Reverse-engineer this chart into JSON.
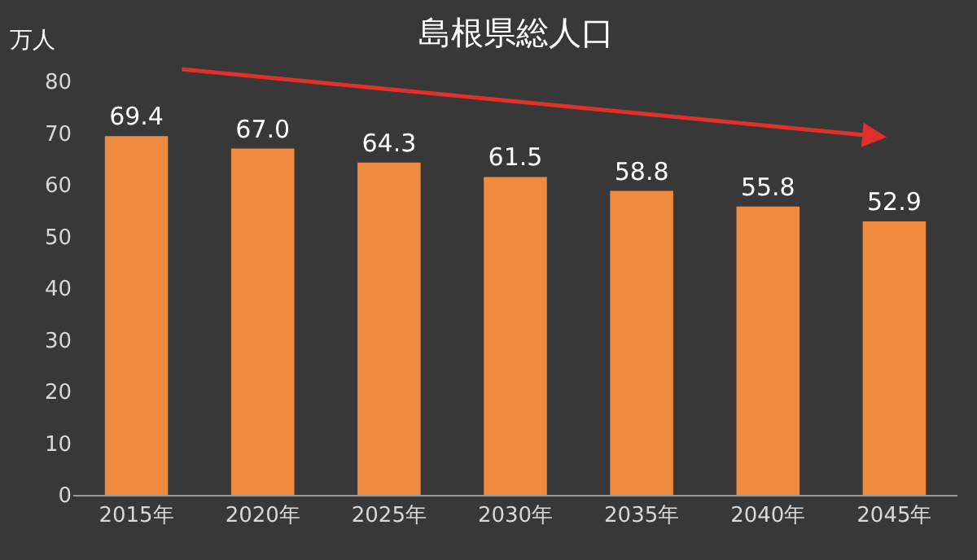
{
  "chart_data": {
    "type": "bar",
    "title": "島根県総人口",
    "ylabel": "万人",
    "categories": [
      "2015年",
      "2020年",
      "2025年",
      "2030年",
      "2035年",
      "2040年",
      "2045年"
    ],
    "values": [
      69.4,
      67.0,
      64.3,
      61.5,
      58.8,
      55.8,
      52.9
    ],
    "value_labels": [
      "69.4",
      "67.0",
      "64.3",
      "61.5",
      "58.8",
      "55.8",
      "52.9"
    ],
    "color": "#f08a3e",
    "ylim": [
      0,
      80
    ],
    "yticks": [
      0,
      10,
      20,
      30,
      40,
      50,
      60,
      70,
      80
    ],
    "grid": false
  }
}
